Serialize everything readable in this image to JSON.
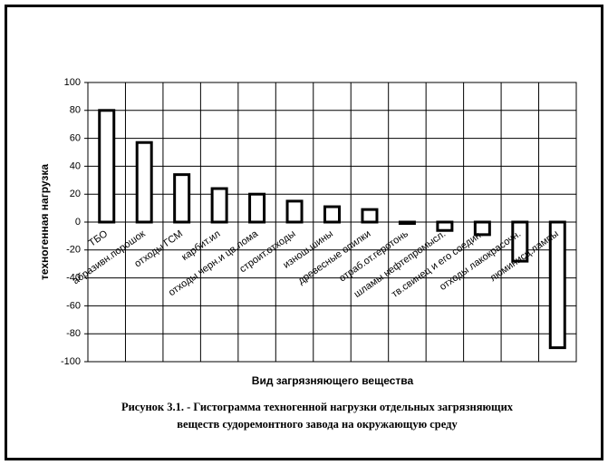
{
  "chart_data": {
    "type": "bar",
    "title": [
      "Рисунок 3.1. - Гистограмма техногенной нагрузки отдельных загрязняющих",
      "веществ судоремонтного завода на окружающую среду"
    ],
    "x_label": "Вид загрязняющего вещества",
    "y_label": "техногенная нагрузка",
    "categories": [
      "ТБО",
      "абразивн.порошок",
      "отходы ГСМ",
      "карбит.ил",
      "отходы черн.и цв.лома",
      "строит.отходы",
      "изнош.шины",
      "древесные опилки",
      "отраб.от.геротонь",
      "шламы нефтепромысл.",
      "тв.свинец и его соедин.",
      "отходы лакокрасочн.",
      "люминисц.лампы"
    ],
    "values": [
      80,
      57,
      34,
      24,
      20,
      15,
      11,
      9,
      -1,
      -6,
      -9,
      -28,
      -90
    ],
    "color": "#ffffff",
    "ylim": [
      -100,
      100
    ],
    "yticks": [
      -100,
      -80,
      -60,
      -40,
      -20,
      0,
      20,
      40,
      60,
      80,
      100
    ],
    "grid": true
  }
}
